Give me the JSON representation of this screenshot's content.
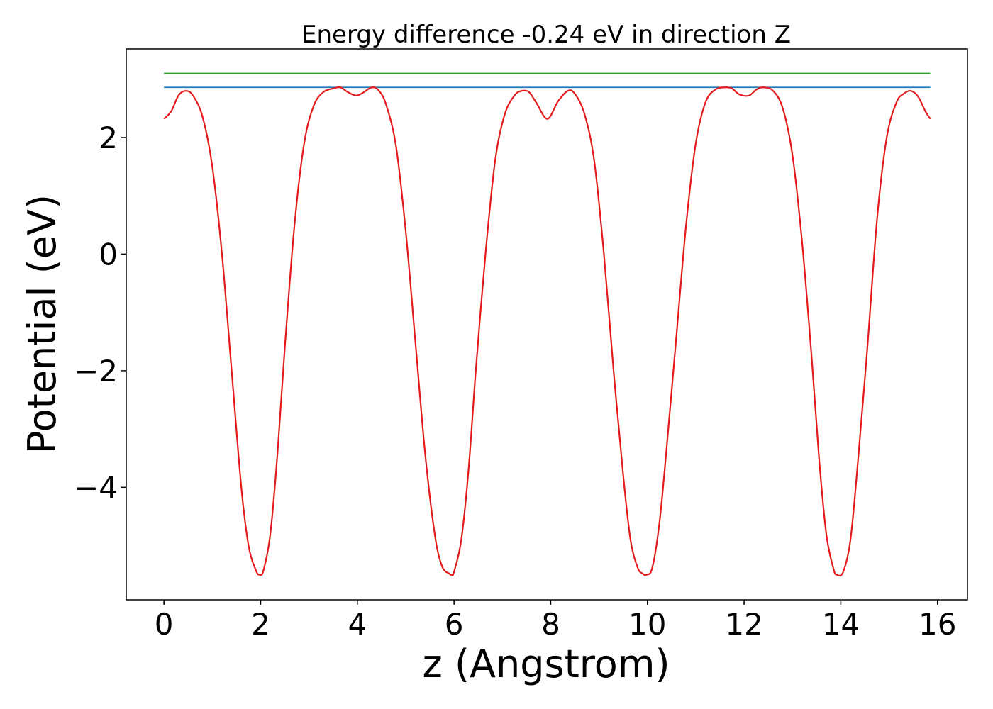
{
  "chart_data": {
    "type": "line",
    "title": "Energy difference -0.24 eV in direction Z",
    "xlabel": "z (Angstrom)",
    "ylabel": "Potential (eV)",
    "xlim": [
      -0.78,
      16.62
    ],
    "ylim": [
      -5.93,
      3.52
    ],
    "xticks": [
      0,
      2,
      4,
      6,
      8,
      10,
      12,
      14,
      16
    ],
    "xtick_labels": [
      "0",
      "2",
      "4",
      "6",
      "8",
      "10",
      "12",
      "14",
      "16"
    ],
    "yticks": [
      -4,
      -2,
      0,
      2
    ],
    "ytick_labels": [
      "−4",
      "−2",
      "0",
      "2"
    ],
    "grid": false,
    "series": [
      {
        "color": "#2ca02c",
        "x": [
          0,
          15.85
        ],
        "y": [
          3.1,
          3.1
        ]
      },
      {
        "color": "#1f77b4",
        "x": [
          0,
          15.85
        ],
        "y": [
          2.86,
          2.86
        ]
      },
      {
        "color": "#e31a1c",
        "x": [
          0,
          0.15,
          0.3,
          0.45,
          0.6,
          0.8,
          1.0,
          1.2,
          1.4,
          1.6,
          1.75,
          1.9,
          1.98,
          2.06,
          2.2,
          2.35,
          2.5,
          2.7,
          2.9,
          3.1,
          3.3,
          3.5,
          3.65,
          3.8,
          3.97,
          4.1,
          4.3,
          4.45,
          4.6,
          4.8,
          5.0,
          5.2,
          5.4,
          5.6,
          5.75,
          5.9,
          5.95,
          6.0,
          6.15,
          6.3,
          6.45,
          6.65,
          6.85,
          7.05,
          7.25,
          7.4,
          7.55,
          7.7,
          7.93,
          8.15,
          8.35,
          8.5,
          8.7,
          8.9,
          9.1,
          9.3,
          9.5,
          9.65,
          9.8,
          9.9,
          9.98,
          10.1,
          10.25,
          10.4,
          10.6,
          10.8,
          11.0,
          11.2,
          11.4,
          11.6,
          11.75,
          11.9,
          12.1,
          12.25,
          12.4,
          12.6,
          12.8,
          13.0,
          13.2,
          13.4,
          13.55,
          13.7,
          13.85,
          13.92,
          14.05,
          14.2,
          14.35,
          14.55,
          14.75,
          14.95,
          15.15,
          15.3,
          15.45,
          15.6,
          15.75,
          15.85
        ],
        "y": [
          2.32,
          2.45,
          2.72,
          2.8,
          2.72,
          2.35,
          1.5,
          0.0,
          -2.0,
          -4.0,
          -5.0,
          -5.42,
          -5.5,
          -5.42,
          -4.8,
          -3.4,
          -1.6,
          0.5,
          1.9,
          2.55,
          2.78,
          2.84,
          2.86,
          2.78,
          2.72,
          2.76,
          2.86,
          2.8,
          2.55,
          1.85,
          0.4,
          -1.5,
          -3.4,
          -4.8,
          -5.35,
          -5.48,
          -5.5,
          -5.45,
          -4.9,
          -3.7,
          -2.0,
          0.0,
          1.6,
          2.4,
          2.72,
          2.8,
          2.78,
          2.6,
          2.32,
          2.62,
          2.8,
          2.75,
          2.4,
          1.6,
          0.0,
          -2.0,
          -3.8,
          -4.9,
          -5.38,
          -5.48,
          -5.5,
          -5.38,
          -4.6,
          -3.3,
          -1.4,
          0.5,
          1.9,
          2.6,
          2.82,
          2.86,
          2.84,
          2.74,
          2.72,
          2.82,
          2.86,
          2.8,
          2.5,
          1.7,
          0.2,
          -1.8,
          -3.5,
          -4.8,
          -5.4,
          -5.5,
          -5.45,
          -4.9,
          -3.6,
          -1.6,
          0.6,
          2.0,
          2.6,
          2.75,
          2.8,
          2.7,
          2.45,
          2.32
        ]
      }
    ]
  }
}
